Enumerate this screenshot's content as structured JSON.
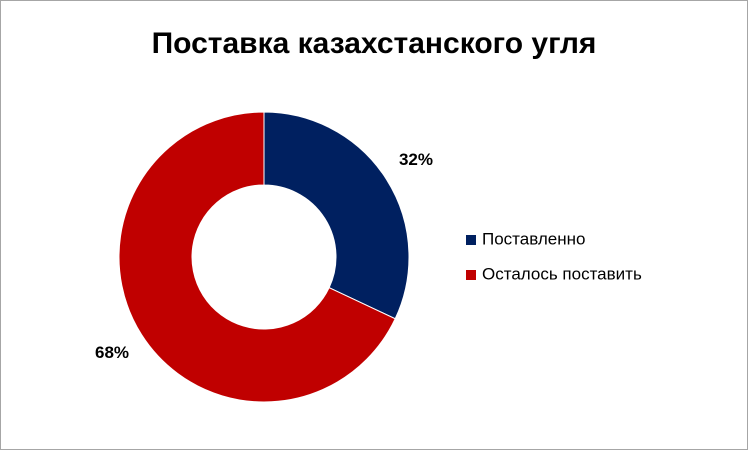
{
  "chart_data": {
    "type": "donut",
    "title": "Поставка казахстанского угля",
    "categories": [
      "Поставленно",
      "Осталось поставить"
    ],
    "values": [
      32,
      68
    ],
    "value_labels": [
      "32%",
      "68%"
    ],
    "colors": [
      "#002060",
      "#c00000"
    ],
    "legend": "right"
  }
}
